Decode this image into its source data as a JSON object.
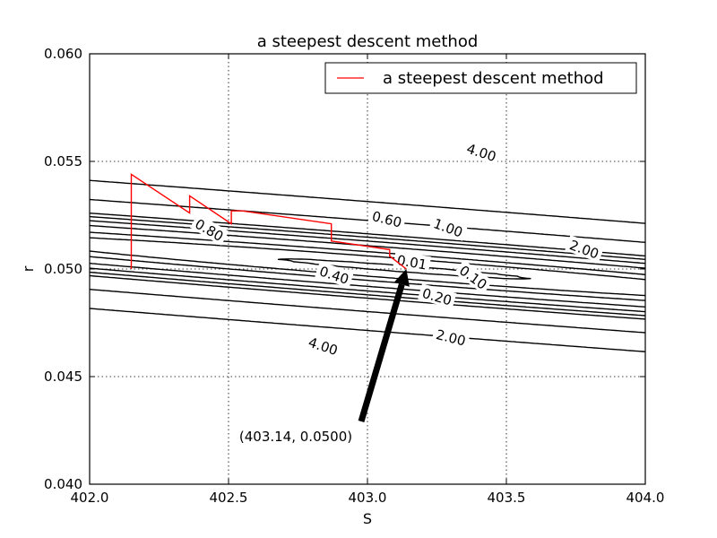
{
  "chart_data": {
    "type": "contour",
    "title": "a steepest descent method",
    "xlabel": "S",
    "ylabel": "r",
    "xlim": [
      402.0,
      404.0
    ],
    "ylim": [
      0.04,
      0.06
    ],
    "xticks": [
      "402.0",
      "402.5",
      "403.0",
      "403.5",
      "404.0"
    ],
    "yticks": [
      "0.040",
      "0.045",
      "0.050",
      "0.055",
      "0.060"
    ],
    "xtick_values": [
      402.0,
      402.5,
      403.0,
      403.5,
      404.0
    ],
    "ytick_values": [
      0.04,
      0.045,
      0.05,
      0.055,
      0.06
    ],
    "grid": true,
    "contour_levels": [
      0.01,
      0.1,
      0.2,
      0.4,
      0.6,
      0.8,
      1.0,
      2.0,
      4.0
    ],
    "contour_labels": [
      {
        "text": "4.00",
        "S": 403.41,
        "r": 0.0554,
        "angle": 18
      },
      {
        "text": "4.00",
        "S": 402.84,
        "r": 0.0464,
        "angle": 18
      },
      {
        "text": "2.00",
        "S": 403.78,
        "r": 0.0509,
        "angle": 20
      },
      {
        "text": "2.00",
        "S": 403.3,
        "r": 0.0468,
        "angle": 14
      },
      {
        "text": "1.00",
        "S": 403.29,
        "r": 0.0519,
        "angle": 20
      },
      {
        "text": "0.80",
        "S": 402.43,
        "r": 0.0518,
        "angle": 30
      },
      {
        "text": "0.60",
        "S": 403.07,
        "r": 0.0523,
        "angle": 14
      },
      {
        "text": "0.40",
        "S": 402.88,
        "r": 0.0497,
        "angle": 18
      },
      {
        "text": "0.20",
        "S": 403.25,
        "r": 0.0487,
        "angle": 16
      },
      {
        "text": "0.10",
        "S": 403.38,
        "r": 0.0496,
        "angle": 36
      },
      {
        "text": "0.01",
        "S": 403.16,
        "r": 0.0503,
        "angle": 10
      }
    ],
    "legend": {
      "entries": [
        "a steepest descent method"
      ],
      "location": "top-right"
    },
    "series": [
      {
        "name": "a steepest descent method",
        "color": "#ff0000",
        "points": [
          [
            402.15,
            0.05
          ],
          [
            402.15,
            0.0544
          ],
          [
            402.36,
            0.0526
          ],
          [
            402.36,
            0.0534
          ],
          [
            402.51,
            0.0521
          ],
          [
            402.51,
            0.0527
          ],
          [
            402.55,
            0.0527
          ],
          [
            402.87,
            0.0521
          ],
          [
            402.87,
            0.0513
          ],
          [
            403.08,
            0.0509
          ],
          [
            403.08,
            0.0506
          ],
          [
            403.14,
            0.05
          ]
        ]
      }
    ],
    "annotation": {
      "text": "(403.14, 0.0500)",
      "point": [
        403.14,
        0.05
      ],
      "text_at": [
        402.98,
        0.0428
      ]
    }
  }
}
